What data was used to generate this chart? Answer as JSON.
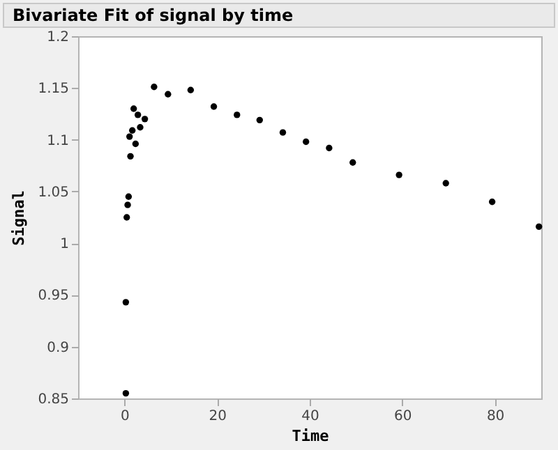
{
  "chart_data": {
    "type": "scatter",
    "title": "Bivariate Fit of signal by time",
    "xlabel": "Time",
    "ylabel": "Signal",
    "x": [
      0.3,
      0.3,
      0.5,
      0.7,
      0.9,
      1.3,
      1.1,
      1.7,
      2.4,
      2.0,
      2.9,
      3.4,
      4.4,
      6.4,
      9.4,
      14.3,
      19.3,
      24.3,
      29.2,
      34.2,
      39.2,
      44.2,
      49.3,
      59.3,
      69.4,
      79.4,
      89.5
    ],
    "series": [
      {
        "color": "#000000",
        "values": [
          0.855,
          0.943,
          1.025,
          1.037,
          1.045,
          1.084,
          1.103,
          1.109,
          1.096,
          1.13,
          1.124,
          1.112,
          1.12,
          1.151,
          1.144,
          1.148,
          1.132,
          1.124,
          1.119,
          1.107,
          1.098,
          1.092,
          1.078,
          1.066,
          1.058,
          1.04,
          1.016
        ]
      }
    ],
    "xlim": [
      -10,
      90
    ],
    "xticks": [
      0,
      20,
      40,
      60,
      80
    ],
    "ylim": [
      0.85,
      1.2
    ],
    "yticks": [
      0.85,
      0.9,
      0.95,
      1,
      1.05,
      1.1,
      1.15,
      1.2
    ],
    "marker": "circle",
    "grid": false
  }
}
